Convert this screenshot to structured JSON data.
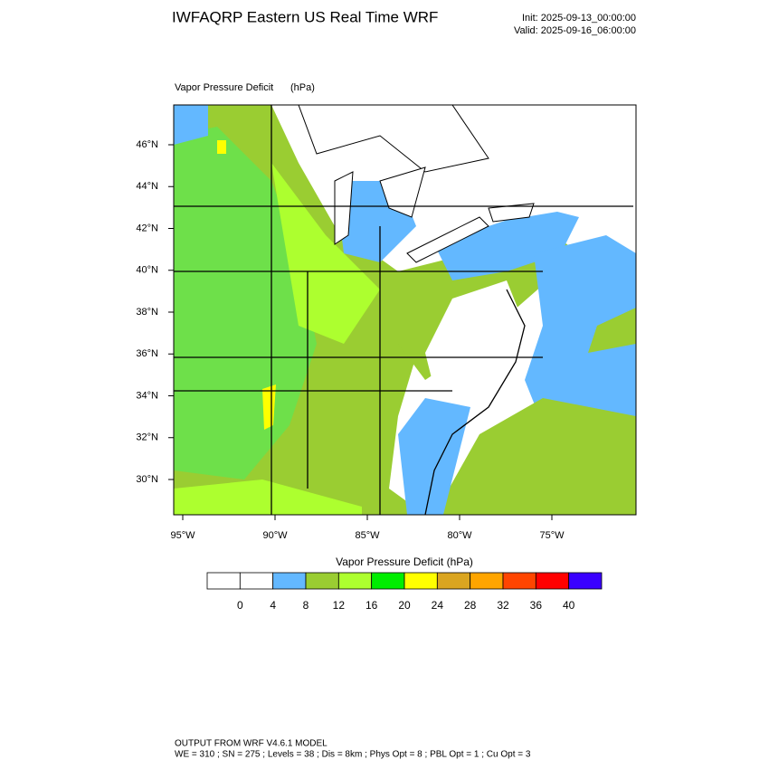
{
  "header": {
    "title": "IWFAQRP Eastern US Real Time WRF",
    "init": "Init: 2025-09-13_00:00:00",
    "valid": "Valid: 2025-09-16_06:00:00"
  },
  "map": {
    "field": "Vapor Pressure Deficit",
    "units": "(hPa)",
    "lat_labels": [
      "46°N",
      "44°N",
      "42°N",
      "40°N",
      "38°N",
      "36°N",
      "34°N",
      "32°N",
      "30°N"
    ],
    "lon_labels": [
      "95°W",
      "90°W",
      "85°W",
      "80°W",
      "75°W"
    ]
  },
  "colorbar": {
    "title": "Vapor Pressure Deficit  (hPa)",
    "colors": [
      "#ffffff",
      "#ffffff",
      "#63b8ff",
      "#9acd32",
      "#adff2f",
      "#00ee00",
      "#ffff00",
      "#daa520",
      "#ffa500",
      "#ff4500",
      "#ff0000",
      "#3a00ff"
    ],
    "labels": [
      0,
      4,
      8,
      12,
      16,
      20,
      24,
      28,
      32,
      36,
      40
    ]
  },
  "footer": {
    "line1": "OUTPUT FROM WRF V4.6.1 MODEL",
    "line2": "WE = 310 ; SN = 275 ; Levels = 38 ; Dis = 8km ; Phys Opt = 8 ; PBL Opt = 1 ; Cu Opt = 3"
  }
}
